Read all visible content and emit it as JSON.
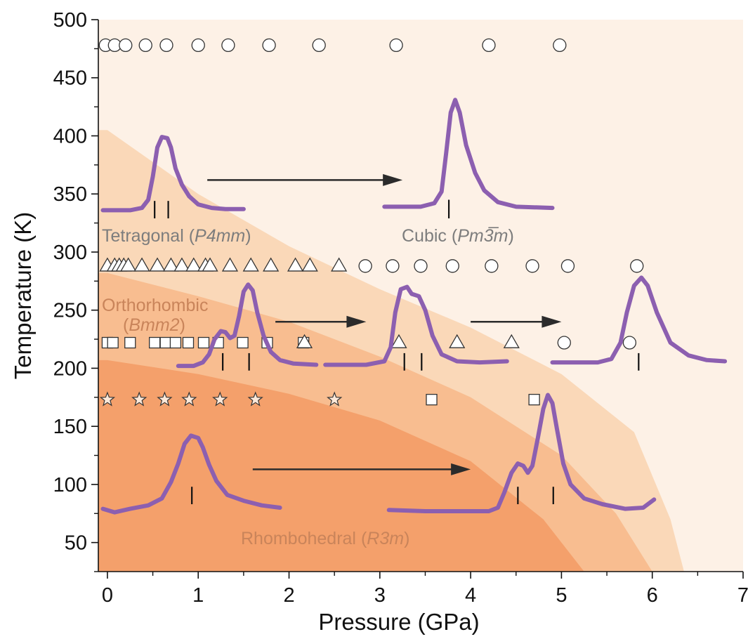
{
  "chart_data": {
    "type": "scatter",
    "xlabel": "Pressure (GPa)",
    "ylabel": "Temperature (K)",
    "xlim": [
      -0.1,
      7
    ],
    "ylim": [
      25,
      500
    ],
    "xticks": [
      "0",
      "1",
      "2",
      "3",
      "4",
      "5",
      "6",
      "7"
    ],
    "yticks": [
      "50",
      "100",
      "150",
      "200",
      "250",
      "300",
      "350",
      "400",
      "450",
      "500"
    ],
    "grid": false,
    "phases": [
      {
        "name": "Rhombohedral",
        "space_group": "(R3m)",
        "color": "#F4A06B"
      },
      {
        "name": "Orthorhombic",
        "space_group": "(Bmm2)",
        "color": "#F8BD90"
      },
      {
        "name": "Tetragonal",
        "space_group": "(P4mm)",
        "color": "#FAD8B8"
      },
      {
        "name": "Cubic",
        "space_group": "(Pm3̅m)",
        "color": "#FDF1E6"
      }
    ],
    "boundaries": [
      {
        "between": "Rhombohedral-Orthorhombic",
        "p_at_T": [
          [
            0,
            207
          ],
          [
            1,
            195
          ],
          [
            2,
            178
          ],
          [
            3,
            155
          ],
          [
            4,
            120
          ],
          [
            4.8,
            70
          ],
          [
            5.25,
            25
          ]
        ]
      },
      {
        "between": "Orthorhombic-Tetragonal",
        "p_at_T": [
          [
            0,
            282
          ],
          [
            1,
            262
          ],
          [
            2,
            240
          ],
          [
            3,
            210
          ],
          [
            4,
            175
          ],
          [
            5,
            125
          ],
          [
            5.6,
            75
          ],
          [
            6.0,
            25
          ]
        ]
      },
      {
        "between": "Tetragonal-Cubic",
        "p_at_T": [
          [
            0,
            405
          ],
          [
            1,
            350
          ],
          [
            2,
            305
          ],
          [
            3,
            268
          ],
          [
            4,
            235
          ],
          [
            5,
            195
          ],
          [
            5.8,
            145
          ],
          [
            6.2,
            70
          ],
          [
            6.35,
            25
          ]
        ]
      }
    ],
    "series": [
      {
        "marker": "circle",
        "y": 478,
        "x": [
          -0.02,
          0.08,
          0.2,
          0.42,
          0.65,
          1.0,
          1.33,
          1.78,
          2.33,
          3.18,
          4.2,
          4.98
        ]
      },
      {
        "marker": "triangle",
        "y": 288,
        "x": [
          0.0,
          0.08,
          0.13,
          0.18,
          0.23,
          0.38,
          0.55,
          0.7,
          0.82,
          0.95,
          1.08,
          1.13,
          1.35,
          1.58,
          1.8,
          2.07,
          2.23,
          2.55
        ]
      },
      {
        "marker": "circle",
        "y": 288,
        "x": [
          2.84,
          3.14,
          3.45,
          3.8,
          4.23,
          4.68,
          5.07,
          5.83
        ]
      },
      {
        "marker": "square",
        "y": 222,
        "x": [
          0.0,
          0.06,
          0.25,
          0.52,
          0.64,
          0.75,
          0.89,
          1.06,
          1.22,
          1.49,
          1.76,
          2.16
        ]
      },
      {
        "marker": "triangle",
        "y": 222,
        "x": [
          2.17,
          3.21,
          3.85,
          4.45
        ]
      },
      {
        "marker": "circle",
        "y": 222,
        "x": [
          5.03,
          5.75
        ]
      },
      {
        "marker": "star",
        "y": 173,
        "x": [
          0.0,
          0.35,
          0.63,
          0.9,
          1.24,
          1.63,
          2.5
        ]
      },
      {
        "marker": "square",
        "y": 173,
        "x": [
          3.57,
          4.7
        ]
      }
    ],
    "arrows": [
      {
        "from": [
          1.1,
          362
        ],
        "to": [
          3.25,
          362
        ]
      },
      {
        "from": [
          1.85,
          240
        ],
        "to": [
          2.85,
          240
        ]
      },
      {
        "from": [
          4.0,
          240
        ],
        "to": [
          5.0,
          240
        ]
      },
      {
        "from": [
          1.6,
          113
        ],
        "to": [
          4.0,
          113
        ]
      }
    ],
    "insets": [
      {
        "ticks": [
          0.52,
          0.67
        ],
        "tick_y": [
          329,
          344
        ],
        "points": [
          [
            -0.05,
            336
          ],
          [
            0.25,
            336
          ],
          [
            0.38,
            338
          ],
          [
            0.45,
            345
          ],
          [
            0.5,
            365
          ],
          [
            0.55,
            390
          ],
          [
            0.6,
            399
          ],
          [
            0.66,
            398
          ],
          [
            0.7,
            390
          ],
          [
            0.75,
            372
          ],
          [
            0.82,
            358
          ],
          [
            0.9,
            348
          ],
          [
            1.0,
            341
          ],
          [
            1.15,
            338
          ],
          [
            1.3,
            337
          ],
          [
            1.5,
            337
          ]
        ]
      },
      {
        "ticks": [
          3.76
        ],
        "tick_y": [
          329,
          345
        ],
        "points": [
          [
            3.05,
            339
          ],
          [
            3.45,
            339
          ],
          [
            3.6,
            342
          ],
          [
            3.68,
            352
          ],
          [
            3.73,
            385
          ],
          [
            3.78,
            420
          ],
          [
            3.83,
            431
          ],
          [
            3.88,
            420
          ],
          [
            3.95,
            392
          ],
          [
            4.05,
            368
          ],
          [
            4.15,
            353
          ],
          [
            4.3,
            343
          ],
          [
            4.5,
            339
          ],
          [
            4.9,
            338
          ]
        ]
      },
      {
        "ticks": [
          1.27,
          1.56
        ],
        "tick_y": [
          198,
          213
        ],
        "points": [
          [
            0.78,
            202
          ],
          [
            0.95,
            202
          ],
          [
            1.05,
            205
          ],
          [
            1.12,
            212
          ],
          [
            1.18,
            225
          ],
          [
            1.25,
            232
          ],
          [
            1.3,
            231
          ],
          [
            1.35,
            226
          ],
          [
            1.4,
            228
          ],
          [
            1.45,
            245
          ],
          [
            1.5,
            266
          ],
          [
            1.55,
            272
          ],
          [
            1.6,
            267
          ],
          [
            1.65,
            248
          ],
          [
            1.72,
            228
          ],
          [
            1.8,
            214
          ],
          [
            1.9,
            207
          ],
          [
            2.05,
            204
          ],
          [
            2.3,
            203
          ]
        ]
      },
      {
        "ticks": [
          3.27,
          3.46
        ],
        "tick_y": [
          198,
          213
        ],
        "points": [
          [
            2.4,
            203
          ],
          [
            2.85,
            203
          ],
          [
            3.05,
            206
          ],
          [
            3.12,
            218
          ],
          [
            3.17,
            248
          ],
          [
            3.23,
            268
          ],
          [
            3.3,
            270
          ],
          [
            3.35,
            264
          ],
          [
            3.43,
            262
          ],
          [
            3.5,
            250
          ],
          [
            3.58,
            228
          ],
          [
            3.68,
            212
          ],
          [
            3.85,
            206
          ],
          [
            4.1,
            205
          ],
          [
            4.4,
            206
          ]
        ]
      },
      {
        "ticks": [
          5.85
        ],
        "tick_y": [
          198,
          213
        ],
        "points": [
          [
            4.9,
            205
          ],
          [
            5.4,
            205
          ],
          [
            5.55,
            208
          ],
          [
            5.65,
            222
          ],
          [
            5.72,
            248
          ],
          [
            5.8,
            271
          ],
          [
            5.88,
            278
          ],
          [
            5.95,
            271
          ],
          [
            6.05,
            248
          ],
          [
            6.2,
            222
          ],
          [
            6.4,
            211
          ],
          [
            6.6,
            207
          ],
          [
            6.8,
            206
          ]
        ]
      },
      {
        "ticks": [
          0.93
        ],
        "tick_y": [
          83,
          98
        ],
        "points": [
          [
            -0.05,
            79
          ],
          [
            0.08,
            76
          ],
          [
            0.25,
            79
          ],
          [
            0.45,
            82
          ],
          [
            0.6,
            88
          ],
          [
            0.7,
            102
          ],
          [
            0.78,
            118
          ],
          [
            0.85,
            135
          ],
          [
            0.92,
            142
          ],
          [
            1.0,
            140
          ],
          [
            1.05,
            132
          ],
          [
            1.12,
            117
          ],
          [
            1.2,
            103
          ],
          [
            1.32,
            91
          ],
          [
            1.5,
            86
          ],
          [
            1.7,
            82
          ],
          [
            1.9,
            80
          ]
        ]
      },
      {
        "ticks": [
          4.52,
          4.91
        ],
        "tick_y": [
          83,
          98
        ],
        "points": [
          [
            3.1,
            78
          ],
          [
            3.5,
            77
          ],
          [
            3.9,
            77
          ],
          [
            4.2,
            77
          ],
          [
            4.3,
            80
          ],
          [
            4.37,
            93
          ],
          [
            4.45,
            110
          ],
          [
            4.52,
            118
          ],
          [
            4.58,
            116
          ],
          [
            4.63,
            110
          ],
          [
            4.68,
            116
          ],
          [
            4.74,
            140
          ],
          [
            4.8,
            165
          ],
          [
            4.85,
            177
          ],
          [
            4.9,
            170
          ],
          [
            4.95,
            148
          ],
          [
            5.02,
            118
          ],
          [
            5.1,
            100
          ],
          [
            5.25,
            88
          ],
          [
            5.45,
            83
          ],
          [
            5.7,
            79
          ],
          [
            5.9,
            80
          ],
          [
            6.02,
            87
          ]
        ]
      }
    ]
  },
  "labels": {
    "tetragonal": {
      "name": "Tetragonal ",
      "group_open": "(",
      "group": "P4mm",
      "group_close": ")"
    },
    "cubic": {
      "name": "Cubic ",
      "group_open": "(",
      "group": "Pm3̅m",
      "group_close": ")"
    },
    "orthorhombic": {
      "name": "Orthorhombic",
      "group_open": "(",
      "group": "Bmm2",
      "group_close": ")"
    },
    "rhombohedral": {
      "name": "Rhombohedral ",
      "group_open": "(",
      "group": "R3m",
      "group_close": ")"
    }
  },
  "colors": {
    "curve": "#8C5FB0",
    "label_gray": "#7D7D7D",
    "label_orange": "#C9845A",
    "arrow": "#2B2B2B"
  }
}
